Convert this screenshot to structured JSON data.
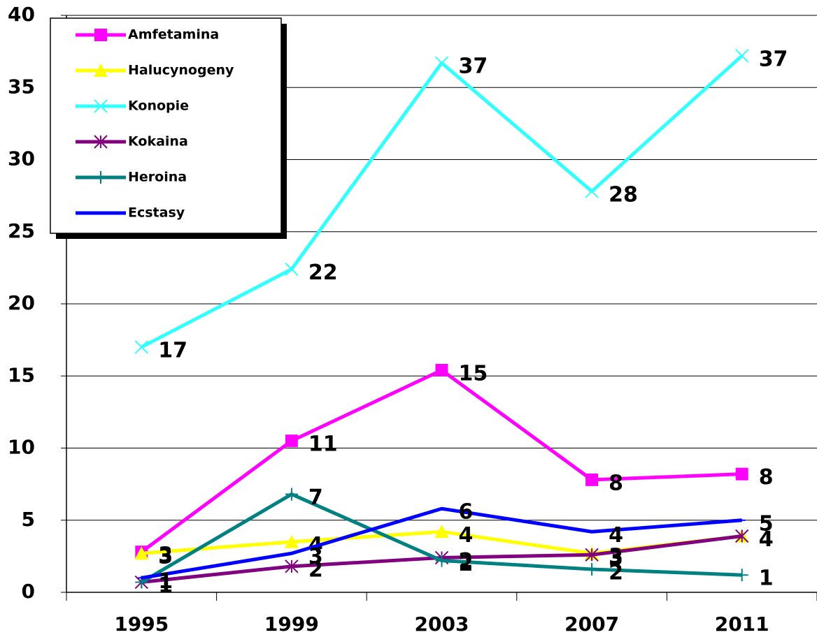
{
  "chart_data": {
    "type": "line",
    "categories": [
      "1995",
      "1999",
      "2003",
      "2007",
      "2011"
    ],
    "ylim": [
      0,
      40
    ],
    "yticks": [
      0,
      5,
      10,
      15,
      20,
      25,
      30,
      35,
      40
    ],
    "grid": true,
    "legend": "top-left",
    "series": [
      {
        "name": "Amfetamina",
        "color": "#ff00ff",
        "marker": "square",
        "values": [
          2.8,
          10.5,
          15.4,
          7.8,
          8.2
        ],
        "value_labels": [
          "3",
          "11",
          "15",
          "8",
          "8"
        ]
      },
      {
        "name": "Halucynogeny",
        "color": "#ffff00",
        "marker": "triangle",
        "values": [
          2.7,
          3.5,
          4.2,
          2.7,
          3.9
        ],
        "value_labels": [
          "3",
          "4",
          "4",
          "3",
          "4"
        ]
      },
      {
        "name": "Konopie",
        "color": "#33ffff",
        "marker": "x",
        "values": [
          17.0,
          22.4,
          36.7,
          27.8,
          37.2
        ],
        "value_labels": [
          "17",
          "22",
          "37",
          "28",
          "37"
        ]
      },
      {
        "name": "Kokaina",
        "color": "#800080",
        "marker": "star",
        "values": [
          0.7,
          1.8,
          2.4,
          2.6,
          3.9
        ],
        "value_labels": [
          "1",
          "2",
          "2",
          "3",
          "4"
        ]
      },
      {
        "name": "Heroina",
        "color": "#008080",
        "marker": "plus",
        "values": [
          0.7,
          6.8,
          2.2,
          1.6,
          1.2
        ],
        "value_labels": [
          "1",
          "7",
          "2",
          "2",
          "1"
        ]
      },
      {
        "name": "Ecstasy",
        "color": "#0000ff",
        "marker": "dash",
        "values": [
          1.0,
          2.7,
          5.8,
          4.2,
          5.0
        ],
        "value_labels": [
          "1",
          "3",
          "6",
          "4",
          "5"
        ]
      }
    ]
  }
}
